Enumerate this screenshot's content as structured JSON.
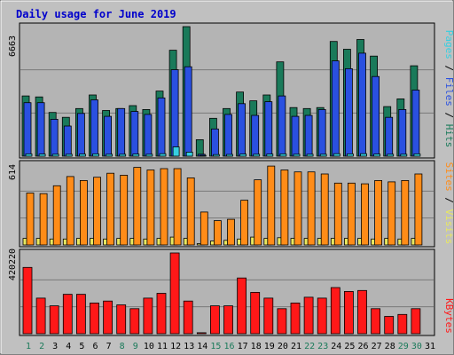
{
  "title": "Daily usage for June 2019",
  "colors": {
    "hits": "#1a7a5a",
    "files": "#2a50e0",
    "pages": "#36cfe0",
    "visits": "#e8e860",
    "sites": "#ff8c18",
    "kbytes": "#ff1818",
    "title": "#0000cc",
    "background": "#c0c0c0",
    "panel": "#b4b4b4"
  },
  "chart_data": [
    {
      "type": "bar",
      "title": "Daily usage for June 2019",
      "categories": [
        "1",
        "2",
        "3",
        "4",
        "5",
        "6",
        "7",
        "8",
        "9",
        "10",
        "11",
        "12",
        "13",
        "14",
        "15",
        "16",
        "17",
        "18",
        "19",
        "20",
        "21",
        "22",
        "23",
        "24",
        "25",
        "26",
        "27",
        "28",
        "29",
        "30",
        "31"
      ],
      "weekend_days": [
        "1",
        "2",
        "8",
        "9",
        "15",
        "16",
        "22",
        "23",
        "29",
        "30"
      ],
      "ylabel_max": "6663",
      "legend": [
        "Pages",
        "Files",
        "Hits"
      ],
      "ylim": [
        0,
        6663
      ],
      "series": [
        {
          "name": "Hits",
          "values": [
            3100,
            3050,
            2250,
            2000,
            2450,
            3150,
            2350,
            2450,
            2600,
            2400,
            3350,
            5450,
            6663,
            850,
            1950,
            2450,
            3300,
            2850,
            3150,
            4850,
            2500,
            2450,
            2500,
            5900,
            5500,
            6000,
            5150,
            2550,
            2950,
            4650,
            0
          ]
        },
        {
          "name": "Files",
          "values": [
            2750,
            2750,
            1900,
            1550,
            2200,
            2900,
            2050,
            2450,
            2300,
            2150,
            3000,
            4450,
            4600,
            100,
            1400,
            2150,
            2700,
            2100,
            2800,
            3100,
            2050,
            2100,
            2400,
            4900,
            4500,
            5300,
            4100,
            2000,
            2400,
            3400,
            0
          ]
        },
        {
          "name": "Pages",
          "values": [
            120,
            110,
            100,
            100,
            110,
            120,
            100,
            100,
            110,
            100,
            130,
            480,
            210,
            40,
            80,
            90,
            110,
            100,
            110,
            120,
            100,
            100,
            100,
            130,
            120,
            130,
            110,
            100,
            100,
            120,
            0
          ]
        }
      ]
    },
    {
      "type": "bar",
      "categories": [
        "1",
        "2",
        "3",
        "4",
        "5",
        "6",
        "7",
        "8",
        "9",
        "10",
        "11",
        "12",
        "13",
        "14",
        "15",
        "16",
        "17",
        "18",
        "19",
        "20",
        "21",
        "22",
        "23",
        "24",
        "25",
        "26",
        "27",
        "28",
        "29",
        "30",
        "31"
      ],
      "ylabel_max": "614",
      "legend": [
        "Sites",
        "Visits"
      ],
      "ylim": [
        0,
        614
      ],
      "series": [
        {
          "name": "Visits",
          "values": [
            50,
            50,
            45,
            45,
            50,
            50,
            45,
            50,
            50,
            45,
            50,
            60,
            50,
            10,
            30,
            35,
            45,
            60,
            50,
            55,
            50,
            50,
            50,
            50,
            50,
            50,
            45,
            50,
            45,
            50,
            0
          ]
        },
        {
          "name": "Sites",
          "values": [
            395,
            390,
            450,
            520,
            490,
            515,
            545,
            530,
            590,
            570,
            580,
            580,
            510,
            250,
            185,
            195,
            340,
            495,
            600,
            570,
            555,
            555,
            540,
            470,
            470,
            465,
            490,
            480,
            490,
            540,
            0
          ]
        }
      ]
    },
    {
      "type": "bar",
      "categories": [
        "1",
        "2",
        "3",
        "4",
        "5",
        "6",
        "7",
        "8",
        "9",
        "10",
        "11",
        "12",
        "13",
        "14",
        "15",
        "16",
        "17",
        "18",
        "19",
        "20",
        "21",
        "22",
        "23",
        "24",
        "25",
        "26",
        "27",
        "28",
        "29",
        "30",
        "31"
      ],
      "ylabel_max": "420220",
      "legend": [
        "KBytes"
      ],
      "ylim": [
        0,
        420220
      ],
      "series": [
        {
          "name": "KBytes",
          "values": [
            345000,
            185000,
            145000,
            205000,
            205000,
            160000,
            170000,
            150000,
            130000,
            185000,
            210000,
            420220,
            170000,
            5000,
            145000,
            145000,
            290000,
            215000,
            185000,
            130000,
            160000,
            190000,
            185000,
            240000,
            220000,
            225000,
            130000,
            90000,
            100000,
            130000,
            0
          ]
        }
      ]
    }
  ]
}
